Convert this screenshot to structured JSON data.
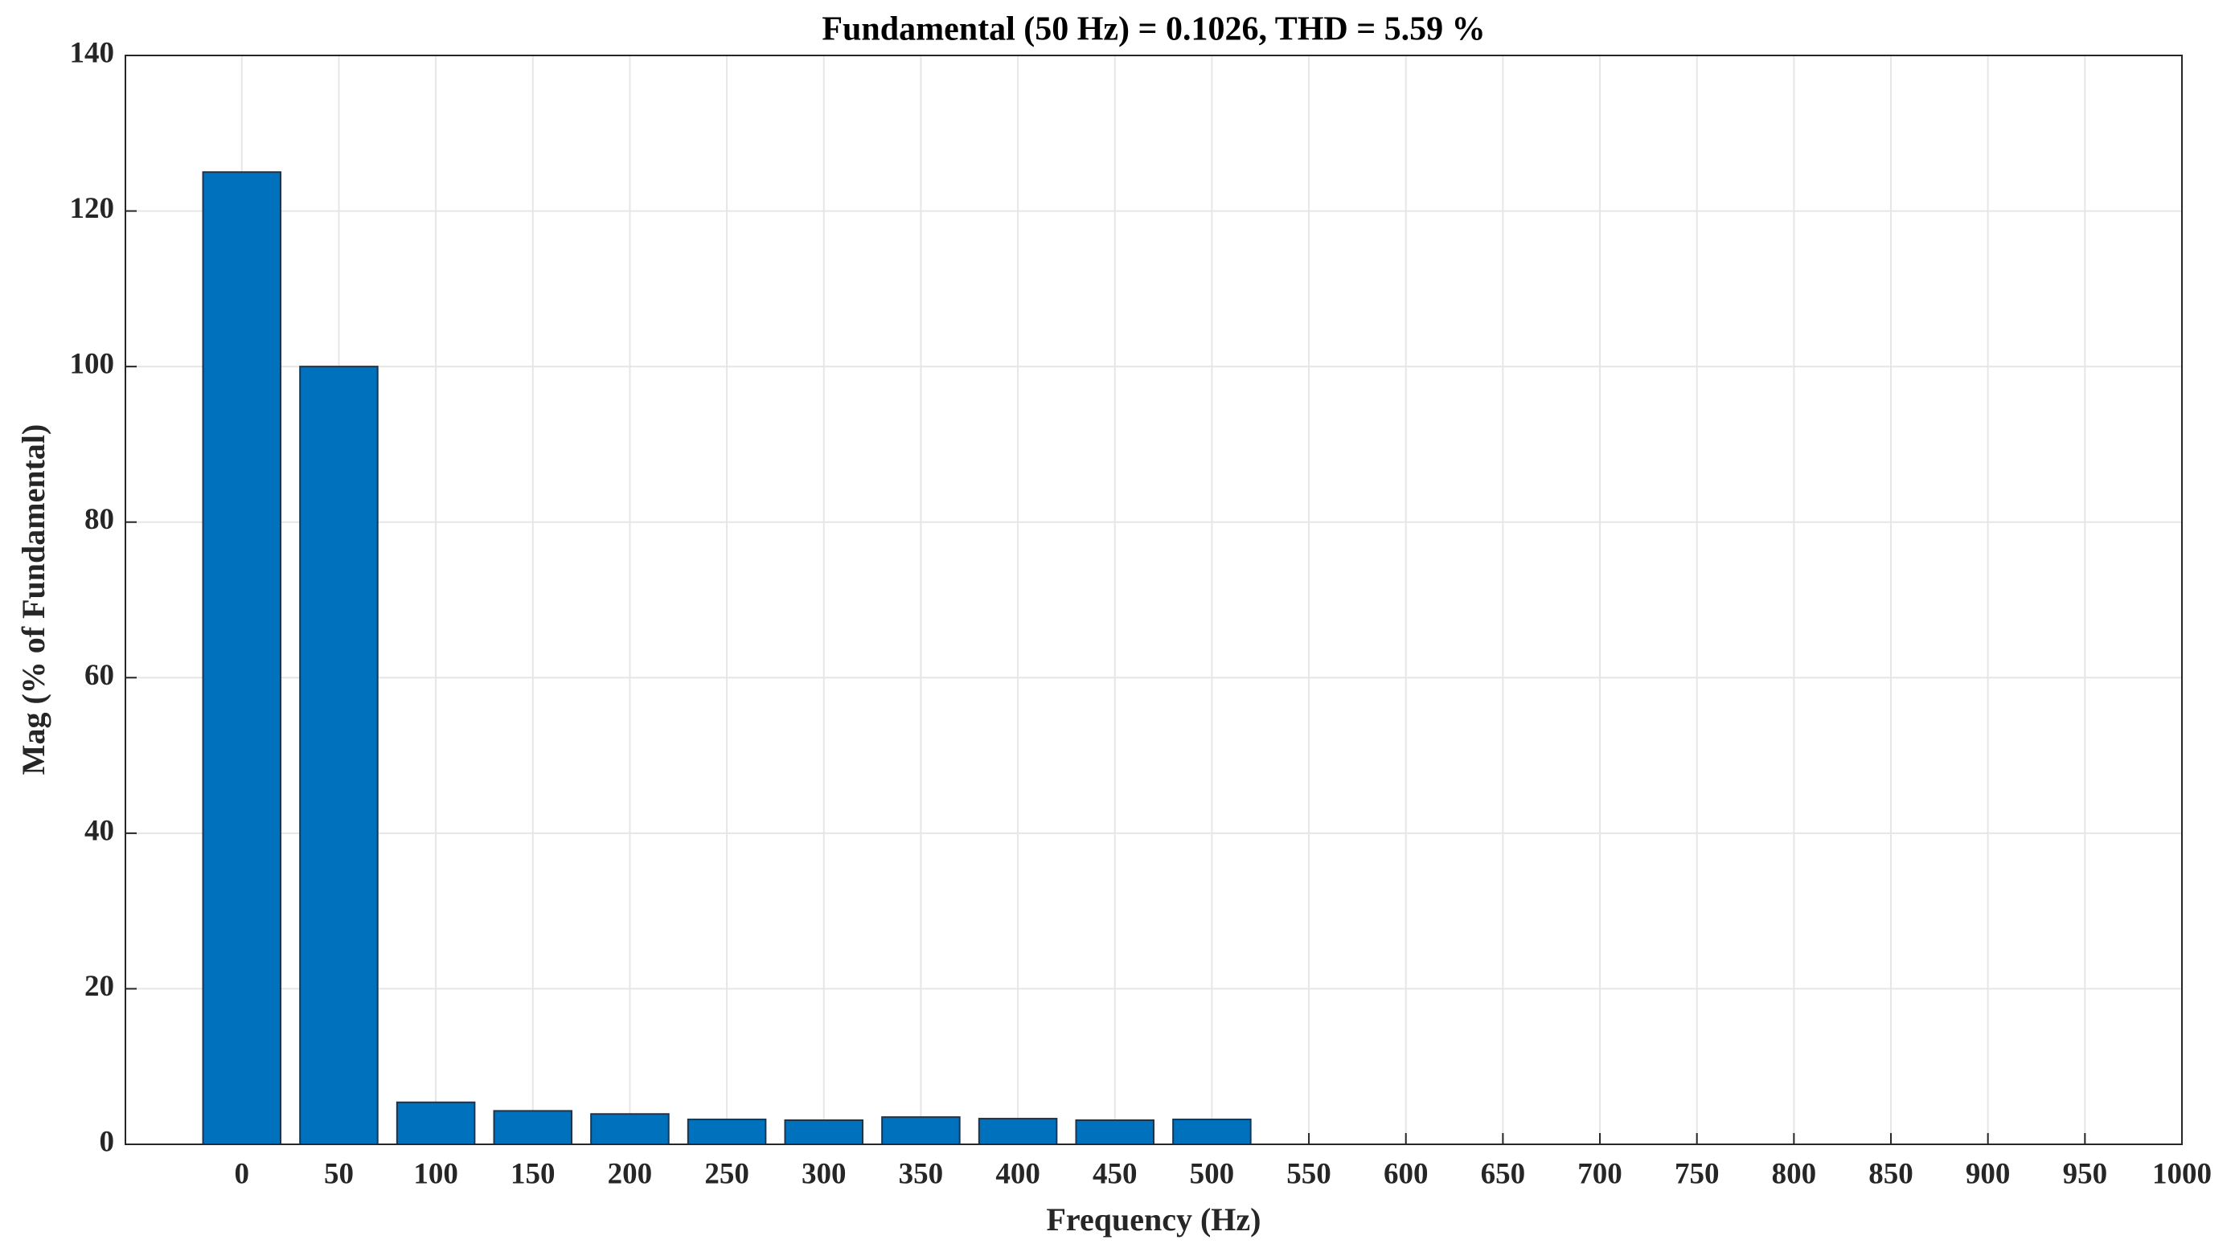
{
  "chart_data": {
    "type": "bar",
    "title": "Fundamental (50 Hz) = 0.1026, THD = 5.59 %",
    "x_label": "Frequency (Hz)",
    "y_label": "Mag (% of Fundamental)",
    "x": [
      0,
      50,
      100,
      150,
      200,
      250,
      300,
      350,
      400,
      450,
      500
    ],
    "values": [
      125,
      100,
      5.4,
      4.3,
      3.9,
      3.2,
      3.1,
      3.5,
      3.3,
      3.1,
      3.2
    ],
    "color": "#0072bd",
    "xlim": [
      -60,
      1000
    ],
    "xticks": [
      0,
      50,
      100,
      150,
      200,
      250,
      300,
      350,
      400,
      450,
      500,
      550,
      600,
      650,
      700,
      750,
      800,
      850,
      900,
      950,
      1000
    ],
    "ylim": [
      0,
      140
    ],
    "yticks": [
      0,
      20,
      40,
      60,
      80,
      100,
      120,
      140
    ],
    "grid": true
  }
}
